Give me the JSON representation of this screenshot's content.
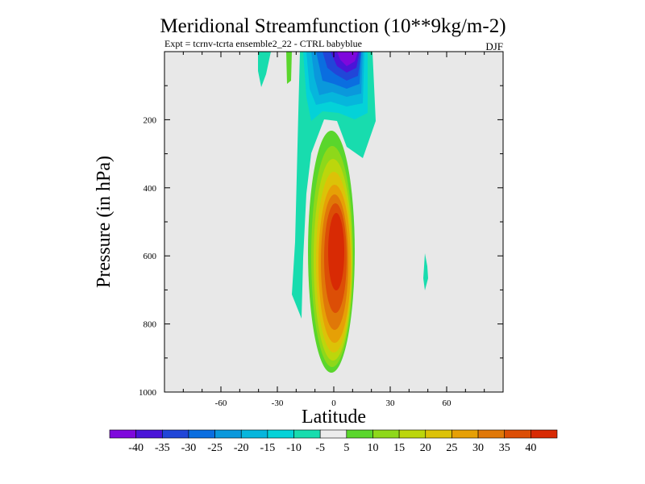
{
  "chart_data": {
    "type": "contour",
    "title": "Meridional Streamfunction (10**9kg/m-2)",
    "subtitle": "Expt = tcrnv-tcrta  ensemble2_22 - CTRL babyblue",
    "season": "DJF",
    "xlabel": "Latitude",
    "ylabel": "Pressure (in hPa)",
    "xlim": [
      -90,
      90
    ],
    "ylim": [
      1000,
      0
    ],
    "x_ticks": [
      -60,
      -30,
      0,
      30,
      60
    ],
    "y_ticks": [
      200,
      400,
      600,
      800,
      1000
    ],
    "background": "#e8e8e8",
    "colorbar": {
      "levels": [
        -40,
        -35,
        -30,
        -25,
        -20,
        -15,
        -10,
        -5,
        5,
        10,
        15,
        20,
        25,
        30,
        35,
        40
      ],
      "colors": [
        "#7e08dc",
        "#4a14d8",
        "#2146d8",
        "#0a6ee0",
        "#0a98dc",
        "#06b6dc",
        "#04d2d8",
        "#18dcae",
        "#ececec",
        "#5ad62c",
        "#8ed81a",
        "#bcd60c",
        "#dcc208",
        "#e6a006",
        "#e07808",
        "#dc4e06",
        "#d82a04"
      ]
    }
  }
}
